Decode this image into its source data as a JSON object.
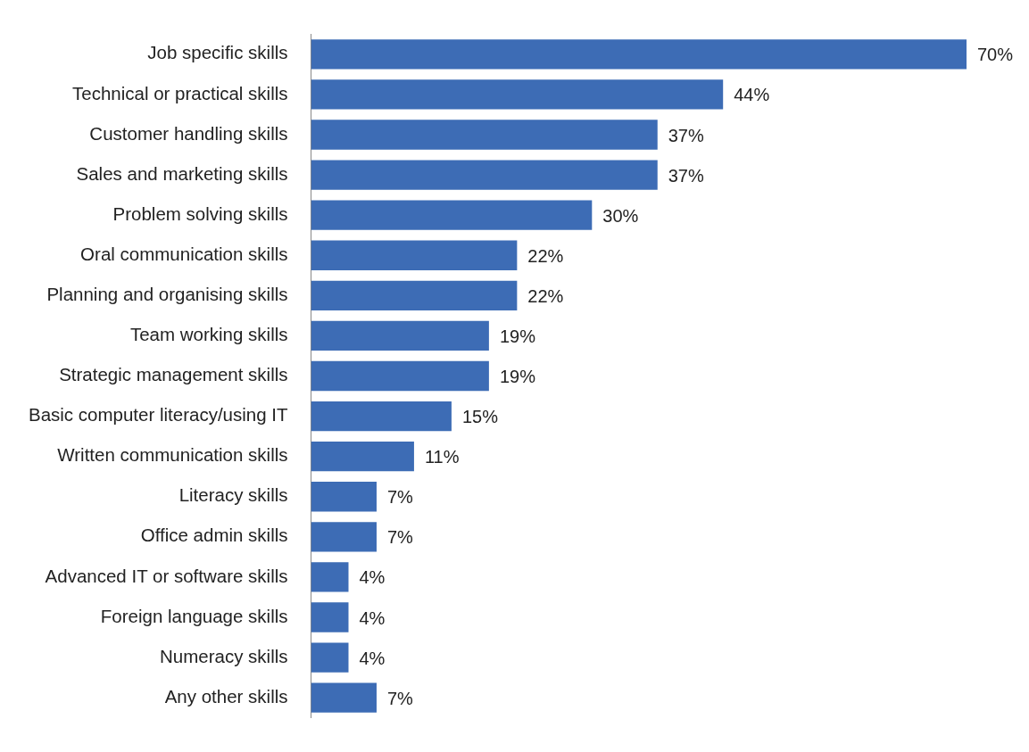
{
  "chart_data": {
    "type": "bar",
    "orientation": "horizontal",
    "categories": [
      "Job specific skills",
      "Technical or practical skills",
      "Customer handling skills",
      "Sales and marketing skills",
      "Problem solving skills",
      "Oral communication skills",
      "Planning and organising skills",
      "Team working skills",
      "Strategic management skills",
      "Basic computer literacy/using IT",
      "Written communication skills",
      "Literacy skills",
      "Office admin skills",
      "Advanced IT or software skills",
      "Foreign language skills",
      "Numeracy skills",
      "Any other skills"
    ],
    "values": [
      70,
      44,
      37,
      37,
      30,
      22,
      22,
      19,
      19,
      15,
      11,
      7,
      7,
      4,
      4,
      4,
      7
    ],
    "value_labels": [
      "70%",
      "44%",
      "37%",
      "37%",
      "30%",
      "22%",
      "22%",
      "19%",
      "19%",
      "15%",
      "11%",
      "7%",
      "7%",
      "4%",
      "4%",
      "4%",
      "7%"
    ],
    "color": "#3d6cb5",
    "xlim": [
      0,
      70
    ],
    "tick_labels": "y",
    "grid": false,
    "legend": false
  }
}
